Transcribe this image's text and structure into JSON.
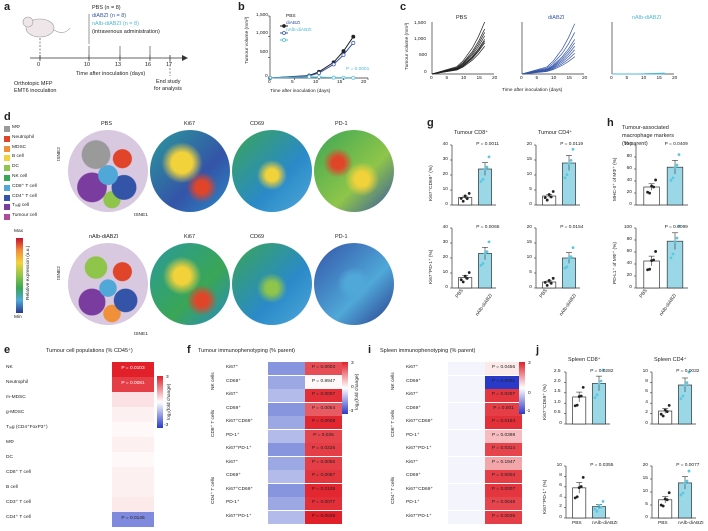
{
  "figure": {
    "panels": {
      "a": "a",
      "b": "b",
      "c": "c",
      "d": "d",
      "e": "e",
      "f": "f",
      "g": "g",
      "h": "h",
      "i": "i",
      "j": "j"
    },
    "a": {
      "legend": [
        "PBS (n = 8)",
        "diABZI (n = 8)",
        "nAlb-diABZI (n = 8)",
        "(intravenous administration)"
      ],
      "ticks": [
        "0",
        "10",
        "13",
        "16",
        "17"
      ],
      "xlabel": "Time after inoculation (days)",
      "left_note": [
        "Orthotopic MFP",
        "EMT6 inoculation"
      ],
      "right_note": [
        "End study",
        "for analysis"
      ]
    },
    "b": {
      "ylabel": "Tumour volume (mm³)",
      "xlabel": "Time after inoculation (days)",
      "yticks": [
        "1,500",
        "1,000",
        "500",
        "0"
      ],
      "xticks": [
        "0",
        "5",
        "10",
        "15",
        "20"
      ],
      "legend": [
        "PBS",
        "diABZI",
        "nAlb-diABZI"
      ],
      "pval": "P = 0.0001"
    },
    "c": {
      "titles": [
        "PBS",
        "diABZI",
        "nAlb-diABZI"
      ],
      "ylabel": "Tumour volume (mm³)",
      "yticks": [
        "1,500",
        "1,000",
        "500",
        "0"
      ],
      "xticks": [
        "0",
        "5",
        "10",
        "15",
        "20"
      ],
      "xlabel": "Time after inoculation (days)"
    },
    "d": {
      "legend": [
        "MΦ",
        "Neutrophil",
        "MDSC",
        "B cell",
        "DC",
        "NK cell",
        "CD8⁺ T cell",
        "CD4⁺ T cell",
        "Tᵣₑg cell",
        "Tumour cell"
      ],
      "legend_colors": [
        "#9a9a9a",
        "#e0452a",
        "#f0903a",
        "#f2d23a",
        "#8fc54a",
        "#3aa655",
        "#4fa8d8",
        "#3454a8",
        "#7a3c9e",
        "#b04a9a"
      ],
      "row1": [
        "PBS",
        "Ki67",
        "CD69",
        "PD-1"
      ],
      "row2": [
        "nAlb-diABZI",
        "Ki67",
        "CD69",
        "PD-1"
      ],
      "tsne1": "tSNE1",
      "tsne2": "tSNE2",
      "scale": {
        "max": "Max",
        "min": "Min",
        "label": "Relative expression (a.u.)"
      }
    },
    "e": {
      "title": "Tumour cell populations (% CD45⁺)",
      "rows": [
        "NK",
        "Neutrophil",
        "m-MDSC",
        "g-MDSC",
        "Tᵣₑg (CD4⁺FoxP3⁺)",
        "MΦ",
        "DC",
        "CD8⁺ T cell",
        "B cell",
        "CD3⁺ T cell",
        "CD4⁺ T cell"
      ],
      "pvals": [
        "P = 0.0103",
        "P = 0.0081",
        "",
        "",
        "",
        "",
        "",
        "",
        "",
        "",
        "P = 0.0145"
      ]
    },
    "f": {
      "title": "Tumour immunophenotyping (% parent)",
      "groups": [
        "NK cells",
        "CD8⁺ T cells",
        "CD4⁺ T cells"
      ],
      "rows": [
        "Ki67⁺",
        "CD69⁺",
        "Ki67⁺",
        "CD69⁺",
        "Ki67⁺CD69⁺",
        "PD-1⁺",
        "Ki67⁺PD-1⁺",
        "Ki67⁺",
        "CD69⁺",
        "Ki67⁺CD69⁺",
        "PD-1⁺",
        "Ki67⁺PD-1⁺"
      ],
      "pvals": [
        "P = 0.0003",
        "P = 0.8947",
        "P = 0.0007",
        "P = 0.0054",
        "P = 0.0008",
        "P = 0.025",
        "P = 0.0225",
        "P = 0.0055",
        "P = 0.0087",
        "P = 0.0105",
        "P = 0.0077",
        "P = 0.0038"
      ],
      "scale": [
        "3",
        "0",
        "-3"
      ],
      "scale_label": "log₂(fold change)"
    },
    "i": {
      "title": "Spleen immunophenotyping (% parent)",
      "groups": [
        "NK cells",
        "CD8⁺ T cells",
        "CD4⁺ T cells"
      ],
      "rows": [
        "Ki67⁺",
        "CD69⁺",
        "Ki67⁺",
        "CD69⁺",
        "Ki67⁺CD69⁺",
        "PD-1⁺",
        "Ki67⁺PD-1⁺",
        "Ki67⁺",
        "CD69⁺",
        "Ki67⁺CD69⁺",
        "PD-1⁺",
        "Ki67⁺PD-1⁺"
      ],
      "pvals": [
        "P = 0.0456",
        "P = 0.0001",
        "P = 0.0297",
        "P = 0.001",
        "P = 0.0164",
        "P = 0.0398",
        "P = 0.0314",
        "P = 0.1947",
        "P = 0.0004",
        "P = 0.0007",
        "P = 0.0048",
        "P = 0.0036"
      ],
      "scale": [
        "3",
        "0",
        "-1"
      ]
    },
    "g": {
      "titles": [
        "Tumour CD8⁺",
        "Tumour CD4⁺"
      ],
      "ylabels": [
        "Ki67⁺CD69⁺ (%)",
        "Ki67⁺PD-1⁺ (%)"
      ],
      "pvals": [
        "P = 0.0011",
        "P = 0.0119",
        "P = 0.0065",
        "P = 0.0154"
      ],
      "xlabels": [
        "PBS",
        "nAlb-diABZI"
      ],
      "yt_top_l": [
        "40",
        "30",
        "20",
        "10",
        "0"
      ],
      "yt_top_r": [
        "20",
        "15",
        "10",
        "5",
        "0"
      ],
      "yt_bot_l": [
        "40",
        "30",
        "20",
        "10",
        "0"
      ],
      "yt_bot_r": [
        "20",
        "15",
        "10",
        "5",
        "0"
      ]
    },
    "h": {
      "title": [
        "Tumour-associated",
        "macrophage markers",
        "(% parent)"
      ],
      "ylabels": [
        "MHC-II⁺ of MΦ⁺ (%)",
        "PD-L1⁺ of MΦ⁺ (%)"
      ],
      "pvals": [
        "P = 0.0409",
        "P = 0.0099"
      ],
      "xlabels": [
        "PBS",
        "nAlb-diABZI"
      ],
      "yt_top": [
        "100",
        "80",
        "60",
        "40",
        "20",
        "0"
      ],
      "yt_bot": [
        "100",
        "80",
        "60",
        "40",
        "20",
        "0"
      ]
    },
    "j": {
      "titles": [
        "Spleen CD8⁺",
        "Spleen CD4⁺"
      ],
      "ylabels": [
        "Ki67⁺CD69⁺ (%)",
        "Ki67⁺PD-1⁺ (%)"
      ],
      "pvals": [
        "P = 0.0282",
        "P = 0.0032",
        "P = 0.0355",
        "P = 0.0077"
      ],
      "xlabels": [
        "PBS",
        "nAlb-diABZI"
      ],
      "yt_top_l": [
        "2.5",
        "2.0",
        "1.5",
        "1.0",
        "0.5",
        "0"
      ],
      "yt_top_r": [
        "10",
        "8",
        "6",
        "4",
        "2",
        "0"
      ],
      "yt_bot_l": [
        "10",
        "8",
        "6",
        "4",
        "2",
        "0"
      ],
      "yt_bot_r": [
        "20",
        "15",
        "10",
        "5",
        "0"
      ]
    }
  },
  "chart_data": [
    {
      "type": "line",
      "title": "b",
      "xlabel": "Time after inoculation (days)",
      "ylabel": "Tumour volume (mm³)",
      "ylim": [
        0,
        1500
      ],
      "xlim": [
        0,
        20
      ],
      "series": [
        {
          "name": "PBS",
          "x": [
            0,
            8,
            10,
            13,
            15,
            17
          ],
          "y": [
            0,
            60,
            150,
            380,
            650,
            1000
          ]
        },
        {
          "name": "diABZI",
          "x": [
            0,
            8,
            10,
            13,
            15,
            17
          ],
          "y": [
            0,
            50,
            120,
            330,
            560,
            850
          ]
        },
        {
          "name": "nAlb-diABZI",
          "x": [
            0,
            8,
            10,
            13,
            15,
            17
          ],
          "y": [
            0,
            30,
            20,
            10,
            5,
            5
          ]
        }
      ]
    },
    {
      "type": "bar",
      "title": "g Tumour CD8⁺ Ki67⁺CD69⁺",
      "categories": [
        "PBS",
        "nAlb-diABZI"
      ],
      "values": [
        5,
        24
      ],
      "ylim": [
        0,
        40
      ]
    },
    {
      "type": "bar",
      "title": "g Tumour CD4⁺ Ki67⁺CD69⁺",
      "categories": [
        "PBS",
        "nAlb-diABZI"
      ],
      "values": [
        3,
        14
      ],
      "ylim": [
        0,
        20
      ]
    },
    {
      "type": "bar",
      "title": "g Tumour CD8⁺ Ki67⁺PD-1⁺",
      "categories": [
        "PBS",
        "nAlb-diABZI"
      ],
      "values": [
        7,
        23
      ],
      "ylim": [
        0,
        40
      ]
    },
    {
      "type": "bar",
      "title": "g Tumour CD4⁺ Ki67⁺PD-1⁺",
      "categories": [
        "PBS",
        "nAlb-diABZI"
      ],
      "values": [
        2,
        10
      ],
      "ylim": [
        0,
        20
      ]
    },
    {
      "type": "bar",
      "title": "h MHC-II⁺ of MΦ",
      "categories": [
        "PBS",
        "nAlb-diABZI"
      ],
      "values": [
        30,
        63
      ],
      "ylim": [
        0,
        100
      ]
    },
    {
      "type": "bar",
      "title": "h PD-L1⁺ of MΦ",
      "categories": [
        "PBS",
        "nAlb-diABZI"
      ],
      "values": [
        45,
        78
      ],
      "ylim": [
        0,
        100
      ]
    },
    {
      "type": "bar",
      "title": "j Spleen CD8⁺ Ki67⁺CD69⁺",
      "categories": [
        "PBS",
        "nAlb-diABZI"
      ],
      "values": [
        1.3,
        1.95
      ],
      "ylim": [
        0,
        2.5
      ]
    },
    {
      "type": "bar",
      "title": "j Spleen CD4⁺ Ki67⁺CD69⁺",
      "categories": [
        "PBS",
        "nAlb-diABZI"
      ],
      "values": [
        2.5,
        7.5
      ],
      "ylim": [
        0,
        10
      ]
    },
    {
      "type": "bar",
      "title": "j Spleen CD8⁺ Ki67⁺PD-1⁺",
      "categories": [
        "PBS",
        "nAlb-diABZI"
      ],
      "values": [
        5.8,
        2.2
      ],
      "ylim": [
        0,
        10
      ]
    },
    {
      "type": "bar",
      "title": "j Spleen CD4⁺ Ki67⁺PD-1⁺",
      "categories": [
        "PBS",
        "nAlb-diABZI"
      ],
      "values": [
        7,
        13.5
      ],
      "ylim": [
        0,
        20
      ]
    },
    {
      "type": "heatmap",
      "title": "f Tumour immunophenotyping",
      "values": [
        2.4,
        0.1,
        2.8,
        2.2,
        2.9,
        2.5,
        2.6,
        2.6,
        2.7,
        2.9,
        2.8,
        3.0
      ]
    },
    {
      "type": "heatmap",
      "title": "i Spleen immunophenotyping",
      "values": [
        0.3,
        -1,
        2.7,
        2.6,
        2.8,
        0.9,
        2.5,
        1.2,
        2.6,
        2.7,
        2.5,
        2.6
      ]
    }
  ]
}
